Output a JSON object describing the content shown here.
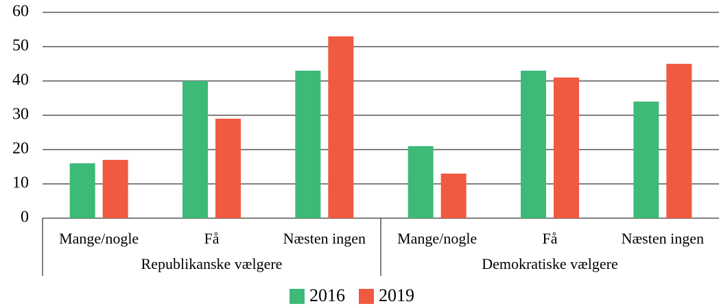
{
  "chart_data": {
    "type": "bar",
    "categories": [
      "Mange/nogle",
      "Få",
      "Næsten ingen",
      "Mange/nogle",
      "Få",
      "Næsten ingen"
    ],
    "groups": [
      "Republikanske vælgere",
      "Demokratiske vælgere"
    ],
    "series": [
      {
        "name": "2016",
        "color": "#3dba78",
        "values": [
          16,
          40,
          43,
          21,
          43,
          34
        ]
      },
      {
        "name": "2019",
        "color": "#f05a40",
        "values": [
          17,
          29,
          53,
          13,
          41,
          45
        ]
      }
    ],
    "ylim": [
      0,
      60
    ],
    "yticks": [
      0,
      10,
      20,
      30,
      40,
      50,
      60
    ],
    "grid": true,
    "legend": "bottom"
  }
}
